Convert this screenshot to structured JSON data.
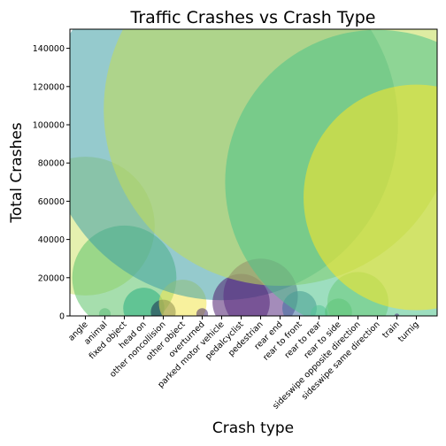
{
  "chart_data": {
    "type": "scatter",
    "title": "Traffic Crashes vs Crash Type",
    "xlabel": "Crash type",
    "ylabel": "Total Crashes",
    "ylim": [
      0,
      150000
    ],
    "yticks": [
      0,
      20000,
      40000,
      60000,
      80000,
      100000,
      120000,
      140000
    ],
    "grid": false,
    "legend": "none",
    "categories": [
      "angle",
      "animal",
      "fixed object",
      "head on",
      "other noncollision",
      "other object",
      "overturned",
      "parked motor vehicle",
      "pedalcyclist",
      "pedestrian",
      "rear end",
      "rear to front",
      "rear to rear",
      "rear to side",
      "sideswipe opposite direction",
      "sideswipe same direction",
      "train",
      "turnig"
    ],
    "values": [
      47000,
      1000,
      20000,
      4000,
      2000,
      6500,
      1000,
      100500,
      7000,
      10500,
      108000,
      4000,
      1200,
      2000,
      7000,
      70000,
      50,
      62000
    ],
    "colors": [
      "#d0e36d",
      "#5fb38a",
      "#5cc26a",
      "#28ae80",
      "#1a2b4f",
      "#f2e54c",
      "#4a2f6e",
      "#3e9ea4",
      "#4e1f70",
      "#5a2d82",
      "#c3dd55",
      "#3c6e9e",
      "#5ec8a4",
      "#52b855",
      "#8fd36c",
      "#4cc38a",
      "#4b2b7a",
      "#fde725"
    ],
    "sizes": [
      1700,
      12,
      960,
      150,
      55,
      200,
      12,
      11000,
      290,
      490,
      11000,
      105,
      25,
      65,
      330,
      8200,
      2,
      4500
    ]
  }
}
